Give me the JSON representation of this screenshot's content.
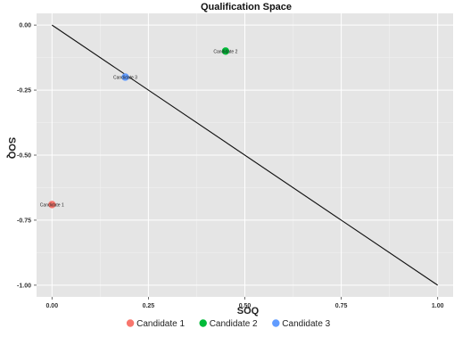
{
  "chart_data": {
    "type": "scatter",
    "title": "Qualification Space",
    "xlabel": "SOQ",
    "ylabel": "SOQ",
    "xlim": [
      -0.04,
      1.04
    ],
    "ylim": [
      -1.045,
      0.045
    ],
    "x_ticks": [
      0.0,
      0.25,
      0.5,
      0.75,
      1.0
    ],
    "x_tick_labels": [
      "0.00",
      "0.25",
      "0.50",
      "0.75",
      "1.00"
    ],
    "y_ticks": [
      0.0,
      -0.25,
      -0.5,
      -0.75,
      -1.0
    ],
    "y_tick_labels": [
      "0.00",
      "-0.25",
      "-0.50",
      "-0.75",
      "-1.00"
    ],
    "grid": true,
    "legend_position": "bottom",
    "reference_line": {
      "x": [
        0,
        1
      ],
      "y": [
        0,
        -1
      ],
      "color": "#111111"
    },
    "series": [
      {
        "name": "Candidate 1",
        "color": "#f8766d",
        "x": [
          0.0
        ],
        "y": [
          -0.69
        ],
        "label": "Candidate 1"
      },
      {
        "name": "Candidate 2",
        "color": "#00ba38",
        "x": [
          0.45
        ],
        "y": [
          -0.1
        ],
        "label": "Candidate 2"
      },
      {
        "name": "Candidate 3",
        "color": "#619cff",
        "x": [
          0.19
        ],
        "y": [
          -0.2
        ],
        "label": "Candidate 3"
      }
    ]
  }
}
